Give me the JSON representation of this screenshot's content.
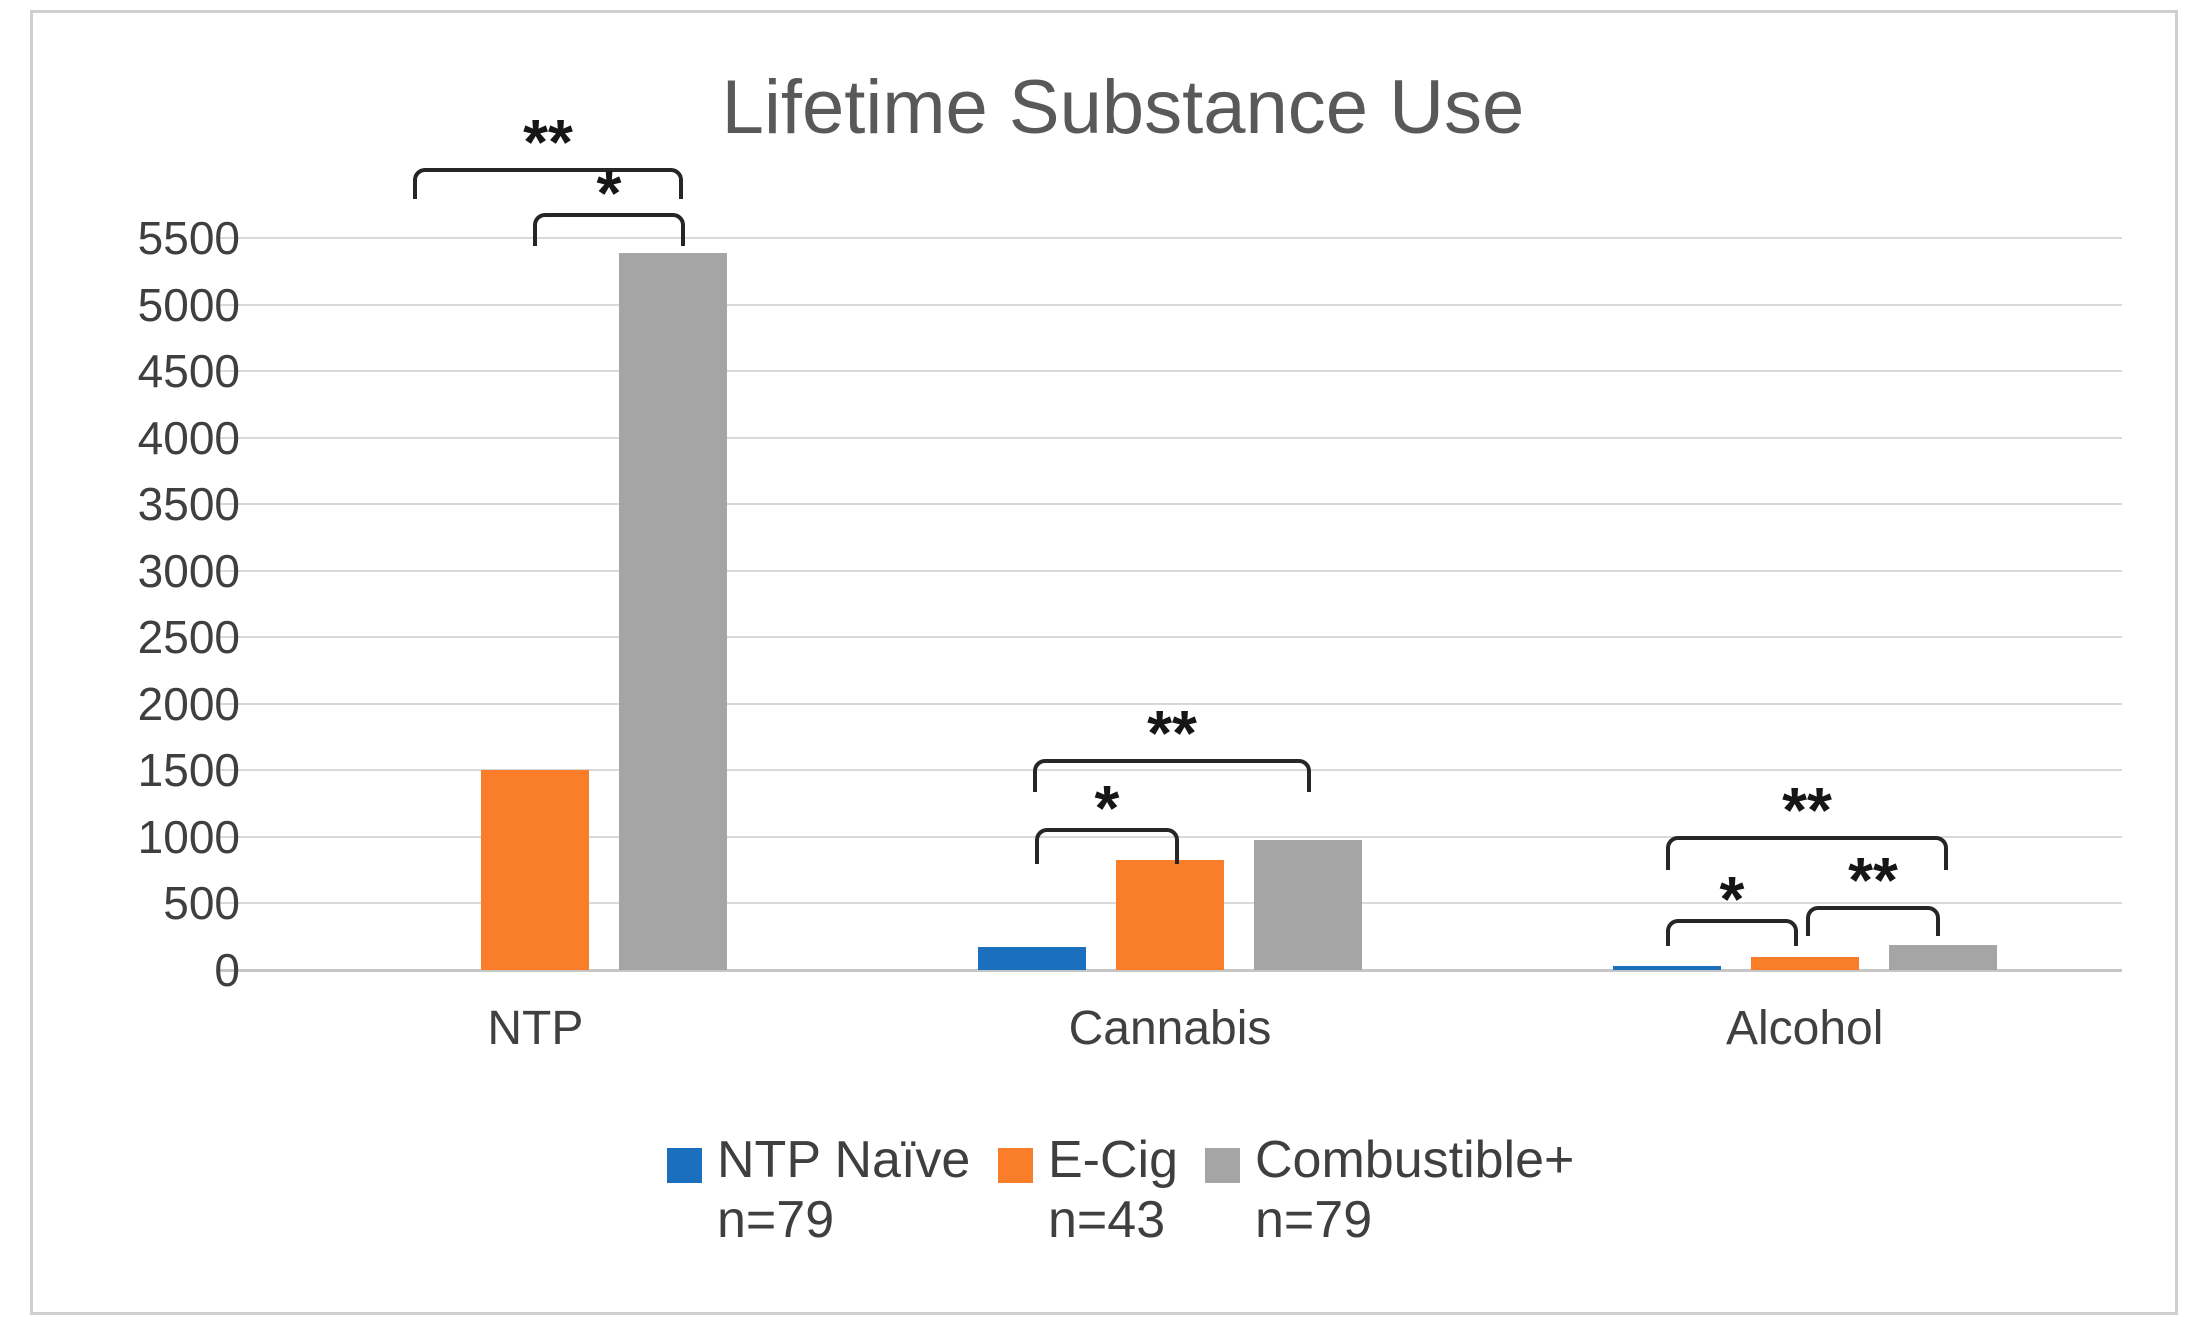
{
  "chart_data": {
    "type": "bar",
    "title": "Lifetime Substance Use",
    "categories": [
      "NTP",
      "Cannabis",
      "Alcohol"
    ],
    "series": [
      {
        "name": "NTP Naïve",
        "n_label": "n=79",
        "color": "#1B70BE",
        "values": [
          0,
          170,
          30
        ]
      },
      {
        "name": "E-Cig",
        "n_label": "n=43",
        "color": "#FA7D29",
        "values": [
          1500,
          830,
          100
        ]
      },
      {
        "name": "Combustible+",
        "n_label": "n=79",
        "color": "#A5A5A5",
        "values": [
          5390,
          980,
          190
        ]
      }
    ],
    "y_axis": {
      "min": 0,
      "max": 5500,
      "step": 500
    },
    "grid": true,
    "legend_position": "bottom",
    "significance_brackets": [
      {
        "category": "NTP",
        "between": [
          "NTP Naïve",
          "Combustible+"
        ],
        "label": "**"
      },
      {
        "category": "NTP",
        "between": [
          "E-Cig",
          "Combustible+"
        ],
        "label": "*"
      },
      {
        "category": "Cannabis",
        "between": [
          "NTP Naïve",
          "Combustible+"
        ],
        "label": "**"
      },
      {
        "category": "Cannabis",
        "between": [
          "NTP Naïve",
          "E-Cig"
        ],
        "label": "*"
      },
      {
        "category": "Alcohol",
        "between": [
          "NTP Naïve",
          "Combustible+"
        ],
        "label": "**"
      },
      {
        "category": "Alcohol",
        "between": [
          "NTP Naïve",
          "E-Cig"
        ],
        "label": "*"
      },
      {
        "category": "Alcohol",
        "between": [
          "E-Cig",
          "Combustible+"
        ],
        "label": "**"
      }
    ],
    "colors": {
      "grid": "#D9D9D9",
      "axis_text": "#3F3F3F",
      "title_text": "#595959",
      "bracket": "#262626"
    }
  }
}
